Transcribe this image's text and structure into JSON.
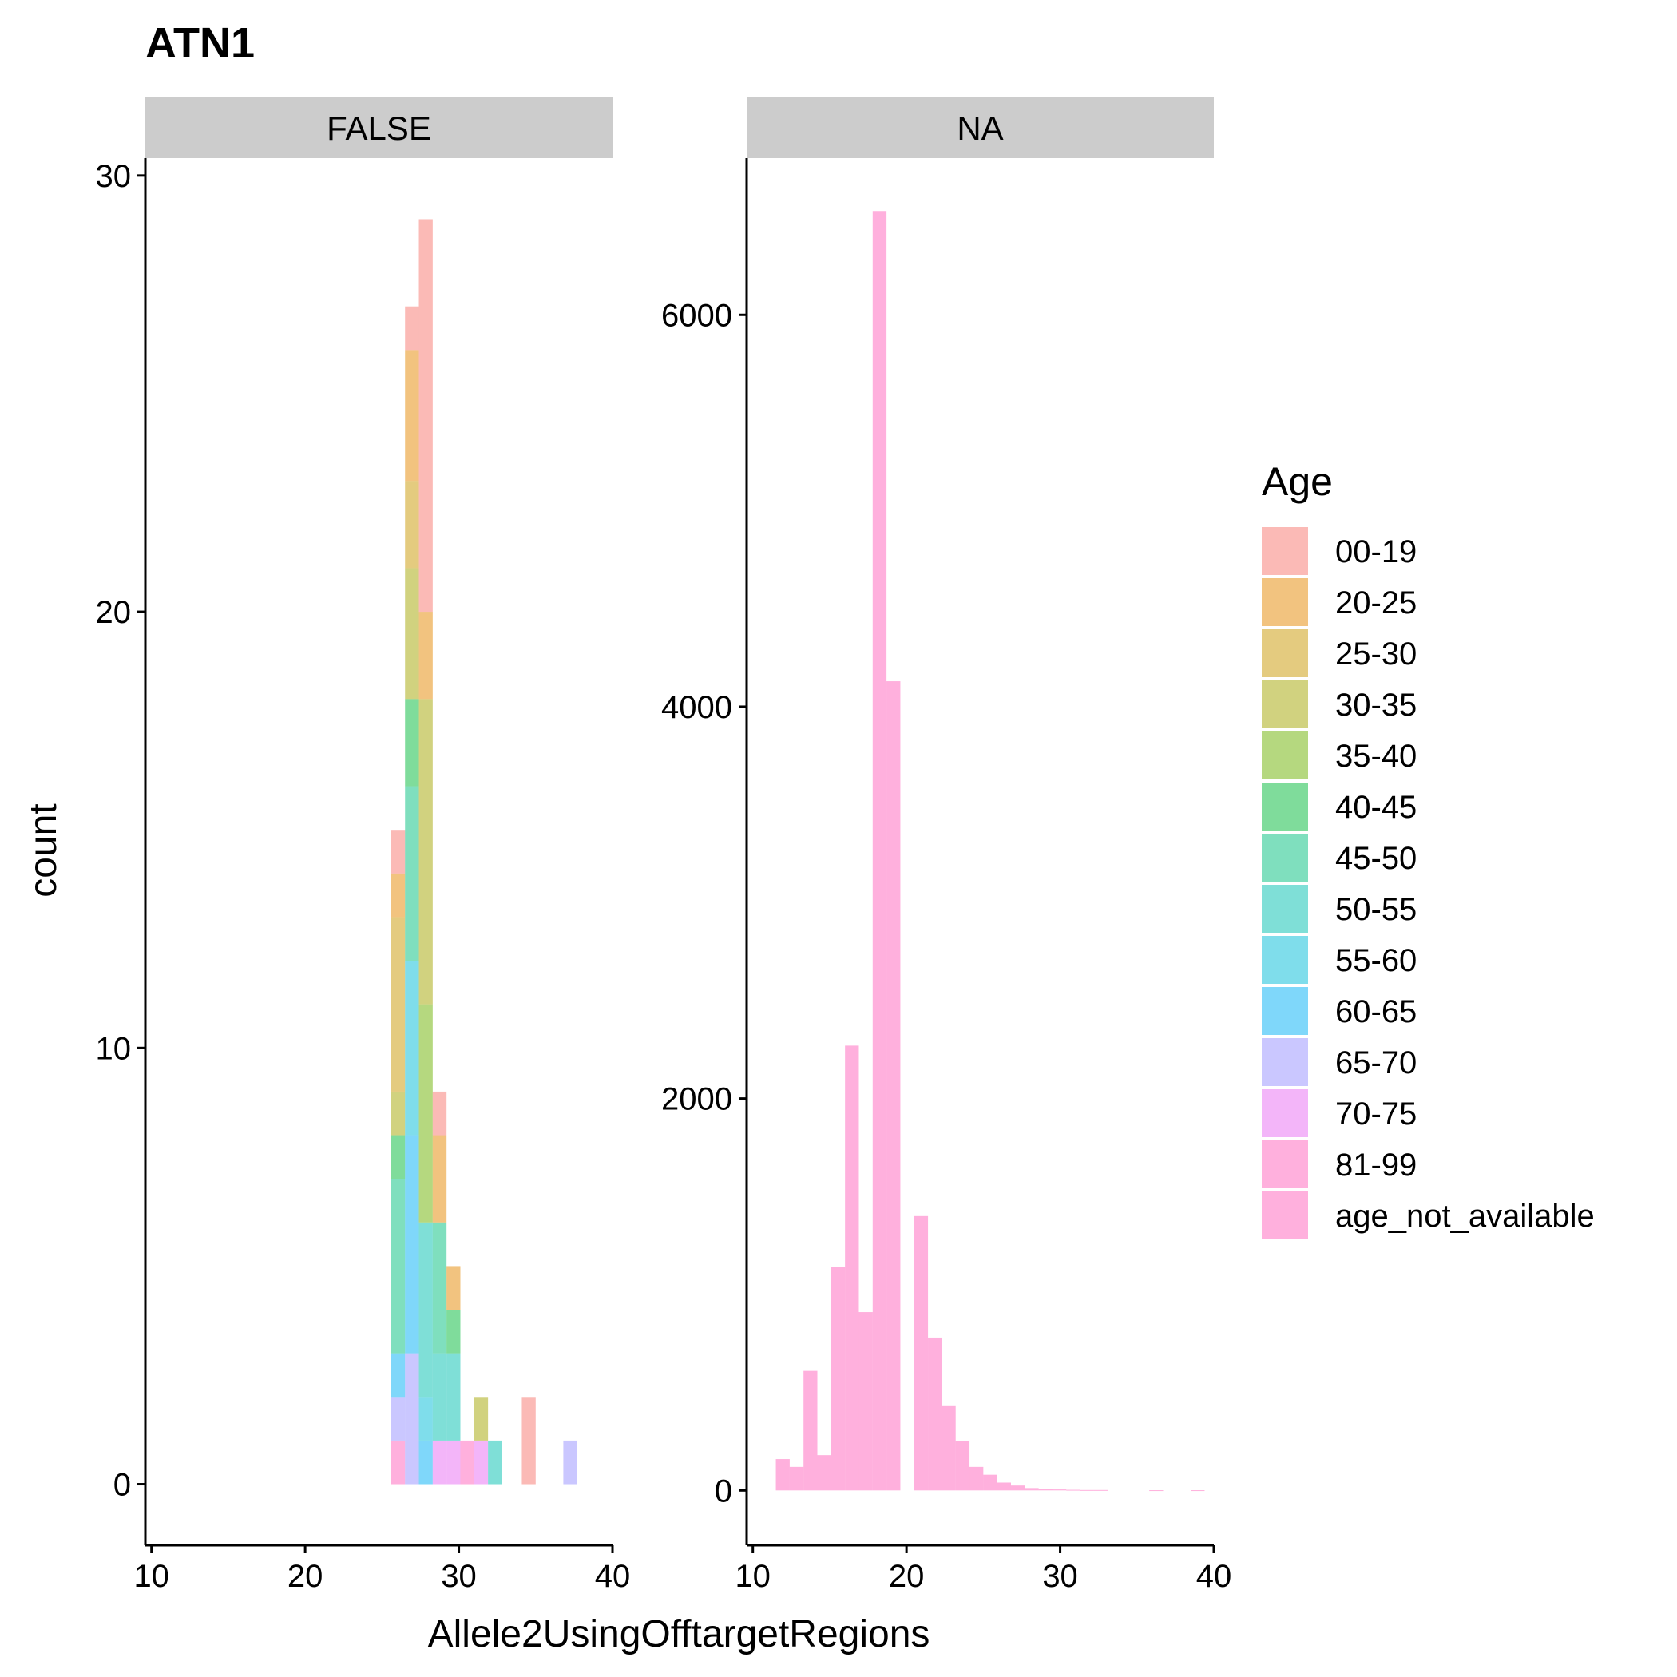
{
  "chart_data": {
    "type": "bar",
    "title": "ATN1",
    "xlabel": "Allele2UsingOfftargetRegions",
    "ylabel": "count",
    "grid": false,
    "legend": {
      "title": "Age",
      "placement": "right",
      "entries": [
        {
          "label": "00-19",
          "color": "#F8766D"
        },
        {
          "label": "20-25",
          "color": "#E58700"
        },
        {
          "label": "25-30",
          "color": "#C99800"
        },
        {
          "label": "30-35",
          "color": "#A3A500"
        },
        {
          "label": "35-40",
          "color": "#6BB100"
        },
        {
          "label": "40-45",
          "color": "#00BA38"
        },
        {
          "label": "45-50",
          "color": "#00BF7D"
        },
        {
          "label": "50-55",
          "color": "#00C0AF"
        },
        {
          "label": "55-60",
          "color": "#00BCD8"
        },
        {
          "label": "60-65",
          "color": "#00B0F6"
        },
        {
          "label": "65-70",
          "color": "#9590FF"
        },
        {
          "label": "70-75",
          "color": "#E76BF3"
        },
        {
          "label": "81-99",
          "color": "#FF62BC"
        },
        {
          "label": "age_not_available",
          "color": "#FF62BC"
        }
      ]
    },
    "bin_width": 0.9,
    "panels": [
      {
        "strip": "FALSE",
        "xlim": [
          9.6,
          40
        ],
        "ylim": [
          -1.4,
          30.4
        ],
        "x_ticks": [
          10,
          20,
          30,
          40
        ],
        "y_ticks": [
          0,
          10,
          20,
          30
        ],
        "stacks": [
          {
            "x": 26.05,
            "segments": [
              {
                "group": "81-99",
                "count": 1
              },
              {
                "group": "65-70",
                "count": 1
              },
              {
                "group": "60-65",
                "count": 1
              },
              {
                "group": "45-50",
                "count": 4
              },
              {
                "group": "40-45",
                "count": 1
              },
              {
                "group": "30-35",
                "count": 1
              },
              {
                "group": "25-30",
                "count": 4
              },
              {
                "group": "20-25",
                "count": 1
              },
              {
                "group": "00-19",
                "count": 1
              }
            ]
          },
          {
            "x": 26.95,
            "segments": [
              {
                "group": "65-70",
                "count": 3
              },
              {
                "group": "60-65",
                "count": 5
              },
              {
                "group": "55-60",
                "count": 4
              },
              {
                "group": "45-50",
                "count": 4
              },
              {
                "group": "40-45",
                "count": 2
              },
              {
                "group": "35-40",
                "count": 0
              },
              {
                "group": "30-35",
                "count": 3
              },
              {
                "group": "25-30",
                "count": 2
              },
              {
                "group": "20-25",
                "count": 3
              },
              {
                "group": "00-19",
                "count": 1
              }
            ]
          },
          {
            "x": 27.85,
            "segments": [
              {
                "group": "60-65",
                "count": 1
              },
              {
                "group": "55-60",
                "count": 1
              },
              {
                "group": "50-55",
                "count": 4
              },
              {
                "group": "35-40",
                "count": 5
              },
              {
                "group": "30-35",
                "count": 7
              },
              {
                "group": "20-25",
                "count": 2
              },
              {
                "group": "00-19",
                "count": 9
              }
            ]
          },
          {
            "x": 28.75,
            "segments": [
              {
                "group": "70-75",
                "count": 1
              },
              {
                "group": "50-55",
                "count": 2
              },
              {
                "group": "45-50",
                "count": 3
              },
              {
                "group": "20-25",
                "count": 2
              },
              {
                "group": "00-19",
                "count": 1
              }
            ]
          },
          {
            "x": 29.65,
            "segments": [
              {
                "group": "70-75",
                "count": 1
              },
              {
                "group": "50-55",
                "count": 2
              },
              {
                "group": "40-45",
                "count": 1
              },
              {
                "group": "20-25",
                "count": 1
              }
            ]
          },
          {
            "x": 30.55,
            "segments": [
              {
                "group": "81-99",
                "count": 1
              }
            ]
          },
          {
            "x": 31.45,
            "segments": [
              {
                "group": "70-75",
                "count": 1
              },
              {
                "group": "30-35",
                "count": 1
              }
            ]
          },
          {
            "x": 32.35,
            "segments": [
              {
                "group": "50-55",
                "count": 1
              }
            ]
          },
          {
            "x": 34.55,
            "segments": [
              {
                "group": "00-19",
                "count": 2
              }
            ]
          },
          {
            "x": 37.25,
            "segments": [
              {
                "group": "65-70",
                "count": 1
              }
            ]
          }
        ]
      },
      {
        "strip": "NA",
        "xlim": [
          9.6,
          40
        ],
        "ylim": [
          -280,
          6800
        ],
        "x_ticks": [
          10,
          20,
          30,
          40
        ],
        "y_ticks": [
          0,
          2000,
          4000,
          6000
        ],
        "group": "age_not_available",
        "bars": [
          {
            "x": 11.05,
            "count": 0
          },
          {
            "x": 11.95,
            "count": 160
          },
          {
            "x": 12.85,
            "count": 120
          },
          {
            "x": 13.75,
            "count": 610
          },
          {
            "x": 14.65,
            "count": 180
          },
          {
            "x": 15.55,
            "count": 1140
          },
          {
            "x": 16.45,
            "count": 2270
          },
          {
            "x": 17.35,
            "count": 910
          },
          {
            "x": 18.25,
            "count": 6530
          },
          {
            "x": 19.15,
            "count": 4130
          },
          {
            "x": 20.05,
            "count": 0
          },
          {
            "x": 20.95,
            "count": 1400
          },
          {
            "x": 21.85,
            "count": 780
          },
          {
            "x": 22.75,
            "count": 430
          },
          {
            "x": 23.65,
            "count": 250
          },
          {
            "x": 24.55,
            "count": 120
          },
          {
            "x": 25.45,
            "count": 80
          },
          {
            "x": 26.35,
            "count": 40
          },
          {
            "x": 27.25,
            "count": 25
          },
          {
            "x": 28.15,
            "count": 12
          },
          {
            "x": 29.05,
            "count": 8
          },
          {
            "x": 29.95,
            "count": 5
          },
          {
            "x": 30.85,
            "count": 3
          },
          {
            "x": 31.75,
            "count": 2
          },
          {
            "x": 32.65,
            "count": 2
          },
          {
            "x": 36.25,
            "count": 1
          },
          {
            "x": 38.95,
            "count": 1
          }
        ]
      }
    ]
  }
}
